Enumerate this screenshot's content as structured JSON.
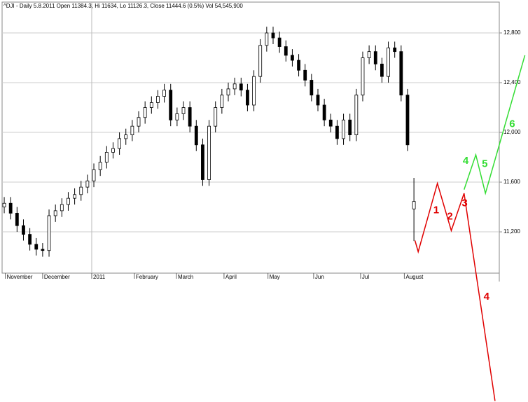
{
  "chart_data": {
    "type": "candlestick",
    "title": "^DJI - Daily 5.8.2011  Open 11384.3,  Hi 11634,  Lo 11126.3,  Close 11444.6  (0.5%)  Vol 54,545,900",
    "x": [
      0,
      3,
      6,
      9,
      12,
      15,
      18,
      21,
      24,
      27,
      30,
      33,
      36,
      39,
      42,
      45,
      48,
      51,
      54,
      57,
      60,
      63,
      66,
      69,
      72,
      75,
      78,
      81,
      84,
      87,
      90,
      93,
      96,
      99,
      102,
      105,
      108,
      111,
      114,
      117,
      120,
      123,
      126,
      129,
      132,
      135,
      138,
      141,
      144,
      147,
      150,
      153,
      156,
      159,
      162,
      165,
      168,
      171,
      174,
      177,
      180,
      183,
      186,
      189,
      192
    ],
    "open": [
      11400,
      11430,
      11350,
      11250,
      11180,
      11100,
      11060,
      11050,
      11330,
      11370,
      11420,
      11470,
      11500,
      11560,
      11610,
      11700,
      11760,
      11840,
      11870,
      11950,
      11980,
      12050,
      12120,
      12200,
      12240,
      12290,
      12340,
      12100,
      12150,
      12200,
      12050,
      11900,
      11620,
      12050,
      12200,
      12300,
      12350,
      12390,
      12340,
      12220,
      12450,
      12700,
      12800,
      12760,
      12690,
      12620,
      12580,
      12500,
      12420,
      12300,
      12220,
      12100,
      12050,
      11950,
      12100,
      11980,
      12300,
      12600,
      12650,
      12550,
      12450,
      12680,
      12650,
      12300,
      11384.3
    ],
    "high": [
      11480,
      11480,
      11400,
      11300,
      11230,
      11150,
      11110,
      11380,
      11420,
      11470,
      11520,
      11550,
      11610,
      11660,
      11750,
      11810,
      11890,
      11920,
      12000,
      12030,
      12100,
      12170,
      12250,
      12290,
      12340,
      12390,
      12390,
      12200,
      12250,
      12250,
      12100,
      11950,
      12100,
      12250,
      12350,
      12400,
      12440,
      12440,
      12390,
      12500,
      12750,
      12850,
      12850,
      12810,
      12740,
      12670,
      12630,
      12550,
      12470,
      12350,
      12270,
      12150,
      12100,
      12150,
      12150,
      12350,
      12650,
      12700,
      12700,
      12600,
      12730,
      12730,
      12700,
      12350,
      11634
    ],
    "low": [
      11350,
      11300,
      11200,
      11130,
      11050,
      11010,
      11000,
      11000,
      11280,
      11320,
      11370,
      11420,
      11450,
      11510,
      11560,
      11650,
      11710,
      11790,
      11820,
      11900,
      11930,
      12000,
      12070,
      12150,
      12190,
      12240,
      12050,
      12050,
      12100,
      12000,
      11850,
      11570,
      11570,
      12000,
      12150,
      12250,
      12300,
      12290,
      12170,
      12170,
      12400,
      12650,
      12710,
      12640,
      12570,
      12530,
      12450,
      12370,
      12250,
      12170,
      12050,
      12000,
      11900,
      11900,
      11930,
      11930,
      12250,
      12550,
      12500,
      12400,
      12400,
      12600,
      12250,
      11850,
      11126.3
    ],
    "close": [
      11430,
      11350,
      11250,
      11180,
      11100,
      11060,
      11050,
      11330,
      11370,
      11420,
      11470,
      11500,
      11560,
      11610,
      11700,
      11760,
      11840,
      11870,
      11950,
      11980,
      12050,
      12120,
      12200,
      12240,
      12290,
      12340,
      12100,
      12150,
      12200,
      12050,
      11900,
      11620,
      12050,
      12200,
      12300,
      12350,
      12390,
      12340,
      12220,
      12450,
      12700,
      12800,
      12760,
      12690,
      12620,
      12580,
      12500,
      12420,
      12300,
      12220,
      12100,
      12050,
      11950,
      12100,
      11980,
      12300,
      12600,
      12650,
      12550,
      12450,
      12680,
      12650,
      12300,
      11900,
      11444.6
    ],
    "xlim": [
      -1,
      232
    ],
    "xticks": [
      {
        "value": 0.5,
        "label": "November"
      },
      {
        "value": 18,
        "label": "December"
      },
      {
        "value": 41,
        "label": "2011"
      },
      {
        "value": 61,
        "label": "February"
      },
      {
        "value": 80.7,
        "label": "March"
      },
      {
        "value": 103,
        "label": "April"
      },
      {
        "value": 123.6,
        "label": "May"
      },
      {
        "value": 145,
        "label": "Jun"
      },
      {
        "value": 167,
        "label": "Jul"
      },
      {
        "value": 187.5,
        "label": "August"
      }
    ],
    "ylim": [
      10868,
      13048
    ],
    "yticks": [
      {
        "value": 11200,
        "label": "11,200"
      },
      {
        "value": 11600,
        "label": "11,600"
      },
      {
        "value": 12000,
        "label": "12,000"
      },
      {
        "value": 12400,
        "label": "12,400"
      },
      {
        "value": 12800,
        "label": "12,800"
      }
    ],
    "grid": true,
    "projections": [
      {
        "color": "#e00000",
        "x": [
          192.5,
          194,
          203,
          209.5,
          215.5,
          230
        ],
        "values": [
          11130,
          11040,
          11590,
          11210,
          11510,
          9840
        ],
        "labels": [
          "1",
          "2",
          "3",
          "4"
        ]
      },
      {
        "color": "#33dd33",
        "x": [
          215.5,
          221,
          225.5,
          244
        ],
        "values": [
          11540,
          11820,
          11510,
          12620
        ],
        "labels": [
          "4",
          "5",
          "6"
        ]
      }
    ]
  }
}
